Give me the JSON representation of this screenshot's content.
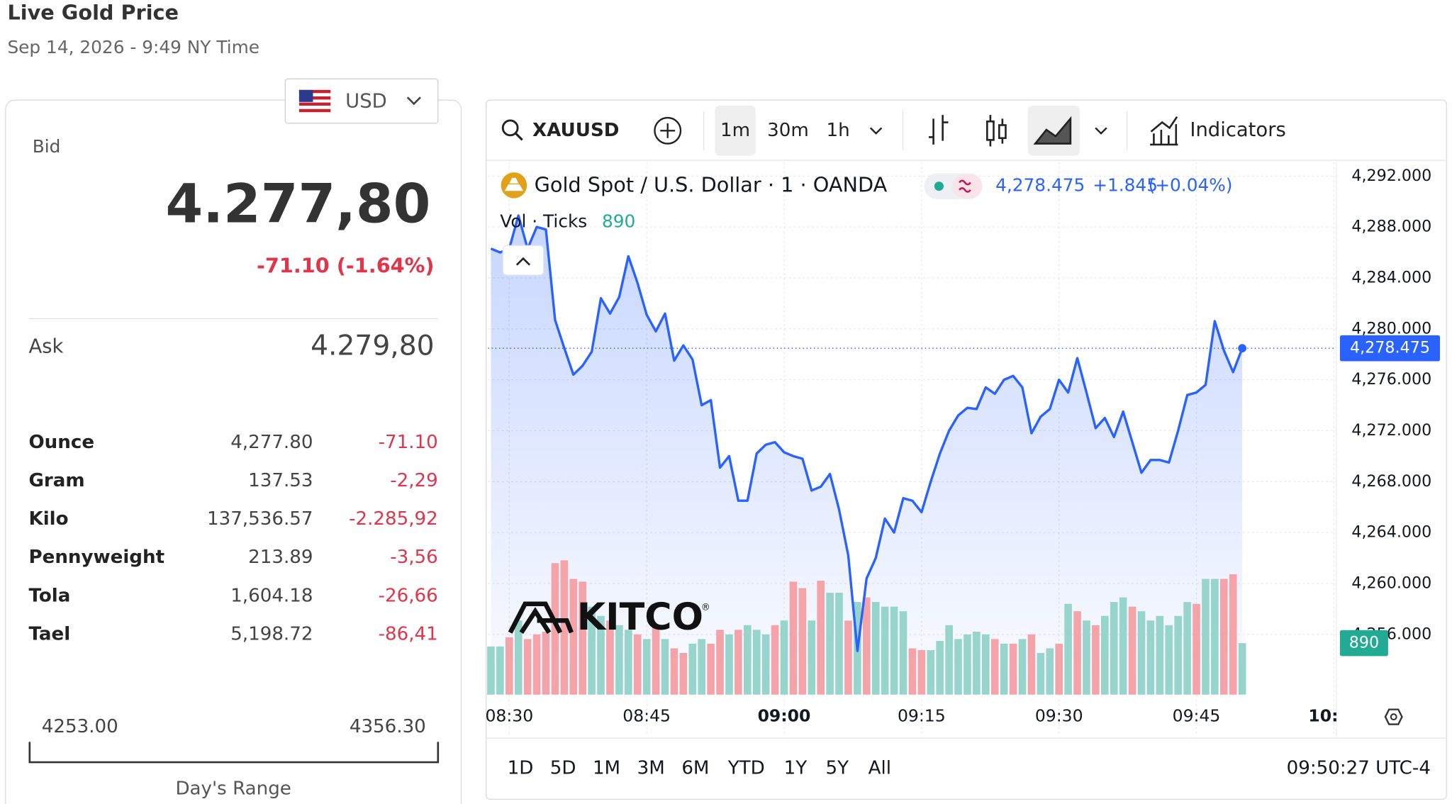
{
  "header": {
    "title": "Live Gold Price",
    "subtitle": "Sep 14, 2026 - 9:49 NY Time"
  },
  "price_panel": {
    "currency": "USD",
    "bid_label": "Bid",
    "bid": "4.277,80",
    "bid_change": "-71.10 (-1.64%)",
    "ask_label": "Ask",
    "ask": "4.279,80",
    "units": [
      [
        "Ounce",
        "4,277.80",
        "-71.10"
      ],
      [
        "Gram",
        "137.53",
        "-2,29"
      ],
      [
        "Kilo",
        "137,536.57",
        "-2.285,92"
      ],
      [
        "Pennyweight",
        "213.89",
        "-3,56"
      ],
      [
        "Tola",
        "1,604.18",
        "-26,66"
      ],
      [
        "Tael",
        "5,198.72",
        "-86,41"
      ]
    ],
    "range_low": "4253.00",
    "range_high": "4356.30",
    "range_label": "Day's Range"
  },
  "toolbar": {
    "symbol": "XAUUSD",
    "intervals": [
      "1m",
      "30m",
      "1h"
    ],
    "indicators": "Indicators"
  },
  "chart": {
    "type": "area",
    "title": "Gold Spot / U.S. Dollar · 1 · OANDA",
    "last_label": "4,278.475",
    "change": "+1.845",
    "change_pct": "(+0.04%)",
    "color": "#2962ff",
    "watermark": "KITCO",
    "watermark_sup": "®",
    "x": [
      508,
      509,
      510,
      511,
      512,
      513,
      514,
      515,
      516,
      517,
      518,
      519,
      520,
      521,
      522,
      523,
      524,
      525,
      526,
      527,
      528,
      529,
      530,
      531,
      532,
      533,
      534,
      535,
      536,
      537,
      538,
      539,
      540,
      541,
      542,
      543,
      544,
      545,
      546,
      547,
      548,
      549,
      550,
      551,
      552,
      553,
      554,
      555,
      556,
      557,
      558,
      559,
      560,
      561,
      562,
      563,
      564,
      565,
      566,
      567,
      568,
      569,
      570,
      571,
      572,
      573,
      574,
      575,
      576,
      577,
      578,
      579,
      580,
      581,
      582,
      583,
      584,
      585,
      586,
      587,
      588,
      589,
      590
    ],
    "values": [
      4286.3,
      4286.0,
      4286.3,
      4288.9,
      4286.3,
      4288.0,
      4287.8,
      4280.7,
      4278.5,
      4276.4,
      4277.1,
      4278.2,
      4282.4,
      4281.2,
      4282.5,
      4285.7,
      4283.6,
      4281.1,
      4279.8,
      4281.2,
      4277.5,
      4278.7,
      4277.6,
      4274.0,
      4274.4,
      4269.1,
      4270.0,
      4266.5,
      4266.5,
      4270.2,
      4270.9,
      4271.1,
      4270.3,
      4270.0,
      4269.8,
      4267.3,
      4267.6,
      4268.6,
      4265.8,
      4262.2,
      4254.7,
      4260.4,
      4262.0,
      4265.1,
      4264.0,
      4266.7,
      4266.5,
      4265.6,
      4268.0,
      4270.2,
      4272.0,
      4273.2,
      4273.8,
      4273.7,
      4275.4,
      4274.9,
      4276.0,
      4276.3,
      4275.4,
      4271.8,
      4273.1,
      4273.7,
      4276.0,
      4275.0,
      4277.7,
      4275.0,
      4272.2,
      4273.0,
      4271.5,
      4273.5,
      4271.1,
      4268.7,
      4269.7,
      4269.7,
      4269.5,
      4272.0,
      4274.8,
      4275.0,
      4275.6,
      4280.6,
      4278.3,
      4276.6,
      4278.475
    ],
    "xlim": [
      507.68,
      600.26
    ],
    "xticks": [
      {
        "value": 510,
        "label": "08:30"
      },
      {
        "value": 525,
        "label": "08:45"
      },
      {
        "value": 540,
        "label": "09:00"
      },
      {
        "value": 555,
        "label": "09:15"
      },
      {
        "value": 570,
        "label": "09:30"
      },
      {
        "value": 585,
        "label": "09:45"
      },
      {
        "value": 600,
        "label": "10:"
      }
    ],
    "ylim": [
      4251.27,
      4293.09
    ],
    "yticks": [
      {
        "value": 4292,
        "label": "4,292.000"
      },
      {
        "value": 4288,
        "label": "4,288.000"
      },
      {
        "value": 4284,
        "label": "4,284.000"
      },
      {
        "value": 4280,
        "label": "4,280.000"
      },
      {
        "value": 4276,
        "label": "4,276.000"
      },
      {
        "value": 4272,
        "label": "4,272.000"
      },
      {
        "value": 4268,
        "label": "4,268.000"
      },
      {
        "value": 4264,
        "label": "4,264.000"
      },
      {
        "value": 4260,
        "label": "4,260.000"
      },
      {
        "value": 4256,
        "label": "4,256.000"
      }
    ],
    "grid": true,
    "volume": {
      "type": "bar",
      "name": "Vol · Ticks",
      "values": [
        832,
        832,
        992,
        1280,
        960,
        1040,
        1088,
        2272,
        2320,
        2000,
        1952,
        1520,
        1360,
        1280,
        1200,
        1120,
        1040,
        960,
        1200,
        960,
        800,
        720,
        880,
        960,
        880,
        1120,
        1040,
        1120,
        1200,
        1120,
        1040,
        1200,
        1280,
        1952,
        1840,
        1280,
        1968,
        1760,
        1760,
        1280,
        1600,
        1680,
        1600,
        1520,
        1520,
        1440,
        800,
        768,
        768,
        928,
        1200,
        960,
        1040,
        1088,
        1040,
        960,
        880,
        880,
        960,
        1040,
        720,
        800,
        880,
        1568,
        1440,
        1280,
        1200,
        1360,
        1600,
        1680,
        1520,
        1440,
        1280,
        1360,
        1200,
        1360,
        1600,
        1568,
        2000,
        2000,
        2000,
        2080,
        890
      ],
      "up": [
        true,
        true,
        false,
        true,
        false,
        false,
        false,
        false,
        false,
        false,
        false,
        true,
        true,
        false,
        true,
        true,
        false,
        true,
        false,
        true,
        false,
        false,
        true,
        true,
        false,
        false,
        true,
        false,
        true,
        true,
        true,
        false,
        true,
        false,
        false,
        true,
        false,
        true,
        true,
        false,
        true,
        false,
        true,
        true,
        true,
        true,
        false,
        false,
        true,
        true,
        true,
        true,
        true,
        true,
        true,
        false,
        true,
        false,
        true,
        false,
        true,
        true,
        false,
        true,
        false,
        true,
        false,
        true,
        true,
        true,
        false,
        true,
        true,
        true,
        true,
        true,
        true,
        false,
        true,
        true,
        false,
        false,
        true
      ],
      "up_color": "#97d4cb",
      "down_color": "#f4a3a8",
      "label_color": "#22ab94",
      "y2lim": [
        0,
        9200
      ]
    }
  },
  "ranges": [
    "1D",
    "5D",
    "1M",
    "3M",
    "6M",
    "YTD",
    "1Y",
    "5Y",
    "All"
  ],
  "clock": "09:50:27 UTC-4"
}
